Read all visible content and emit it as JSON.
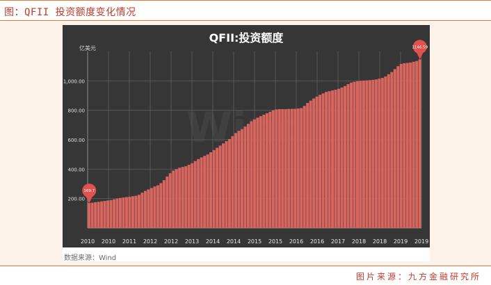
{
  "header": {
    "title": "图：QFII 投资额度变化情况"
  },
  "footer": {
    "source": "图片来源：九方金融研究所"
  },
  "chart_note": "数据来源：Wind",
  "watermark": "Wind",
  "colors": {
    "accent": "#e07a3e",
    "bar": "#d9665e",
    "bg": "#363636",
    "marker": "#e0514f"
  },
  "chart_data": {
    "type": "bar",
    "title": "QFII:投资额度",
    "ylabel": "亿美元",
    "xlabel": "",
    "ylim": [
      0,
      1200
    ],
    "y_ticks": [
      200,
      400,
      600,
      800,
      1000
    ],
    "y_tick_labels": [
      "200.00",
      "400.00",
      "600.00",
      "800.00",
      "1,000.00"
    ],
    "x_tick_labels": [
      "2010",
      "2010",
      "2011",
      "2012",
      "2012",
      "2013",
      "2014",
      "2014",
      "2015",
      "2015",
      "2016",
      "2016",
      "2017",
      "2018",
      "2018",
      "2019",
      "2019"
    ],
    "values": [
      169.7,
      172,
      175,
      178,
      181,
      184,
      187,
      190,
      195,
      200,
      204,
      207,
      210,
      213,
      216,
      219,
      226,
      240,
      252,
      262,
      272,
      282,
      290,
      305,
      325,
      350,
      372,
      390,
      400,
      410,
      415,
      420,
      430,
      440,
      455,
      468,
      480,
      490,
      500,
      515,
      530,
      545,
      560,
      575,
      590,
      605,
      625,
      645,
      660,
      672,
      690,
      708,
      725,
      738,
      750,
      760,
      770,
      780,
      790,
      800,
      806,
      808,
      808,
      808,
      809,
      810,
      810,
      812,
      815,
      830,
      850,
      866,
      880,
      893,
      905,
      915,
      925,
      930,
      935,
      940,
      946,
      955,
      965,
      978,
      988,
      994,
      998,
      1000,
      1002,
      1003,
      1005,
      1007,
      1010,
      1015,
      1020,
      1030,
      1045,
      1060,
      1080,
      1100,
      1115,
      1120,
      1122,
      1125,
      1130,
      1135,
      1146.59
    ],
    "annotations": [
      {
        "label": "169.7",
        "value": 169.7
      },
      {
        "label": "1146.59",
        "value": 1146.59
      }
    ]
  }
}
